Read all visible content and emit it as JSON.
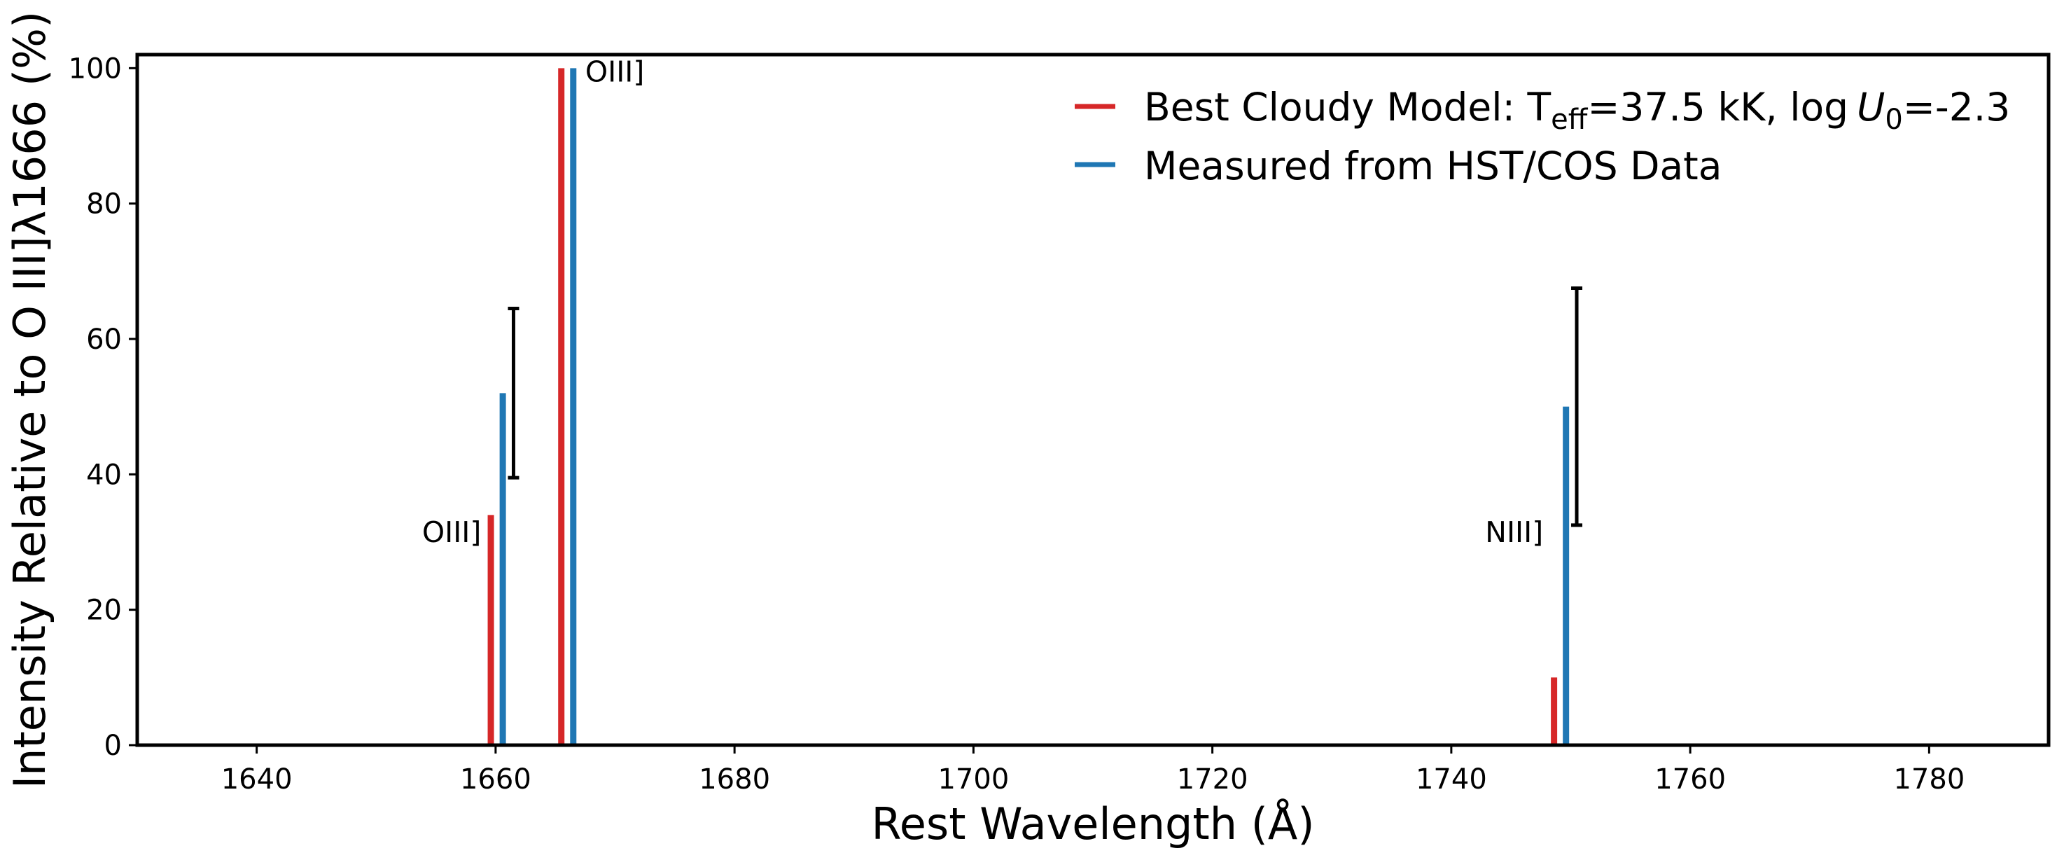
{
  "chart_data": {
    "type": "bar",
    "xlabel": "Rest Wavelength (Å)",
    "ylabel": "Intensity Relative to O III]λ1666 (%)",
    "xlim": [
      1630,
      1790
    ],
    "ylim": [
      0,
      102
    ],
    "x_ticks": [
      1640,
      1660,
      1680,
      1700,
      1720,
      1740,
      1760,
      1780
    ],
    "y_ticks": [
      0,
      20,
      40,
      60,
      80,
      100
    ],
    "grid": false,
    "legend_position": "top-right",
    "legend": {
      "model": {
        "prefix": "Best Cloudy Model: T",
        "sub1": "eff",
        "mid": "=37.5 kK, log",
        "sym": "U",
        "sub2": "0",
        "suffix": "=-2.3"
      },
      "measured": "Measured from HST/COS Data"
    },
    "series": [
      {
        "name": "Best Cloudy Model: Teff=37.5 kK, log U0=-2.3",
        "color": "#d62728",
        "x": [
          1659.6,
          1665.5,
          1748.6
        ],
        "values": [
          34,
          100,
          10
        ]
      },
      {
        "name": "Measured from HST/COS Data",
        "color": "#1f77b4",
        "x": [
          1660.6,
          1666.5,
          1749.6
        ],
        "values": [
          52,
          100,
          50
        ]
      }
    ],
    "error_bars": [
      {
        "x": 1661.5,
        "low": 39.5,
        "high": 64.5
      },
      {
        "x": 1750.5,
        "low": 32.5,
        "high": 67.5
      }
    ],
    "annotations": [
      {
        "text": "OIII]",
        "x": 1658.8,
        "y": 30,
        "anchor": "end"
      },
      {
        "text": "OIII]",
        "x": 1667.5,
        "y": 98,
        "anchor": "start"
      },
      {
        "text": "NIII]",
        "x": 1747.7,
        "y": 30,
        "anchor": "end"
      }
    ]
  }
}
